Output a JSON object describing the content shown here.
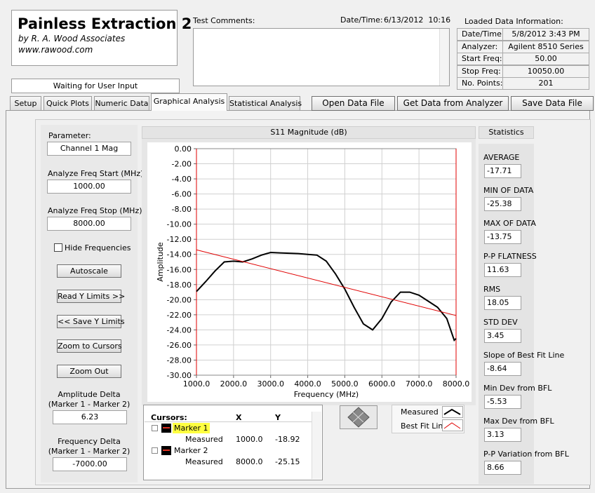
{
  "header": {
    "title": "Painless Extraction 2",
    "author": "by R. A. Wood Associates",
    "url": "www.rawood.com"
  },
  "status": "Waiting for User Input",
  "comments": {
    "label": "Test Comments:"
  },
  "datetime": {
    "label": "Date/Time:",
    "value": "6/13/2012  10:16"
  },
  "loaded_data": {
    "title": "Loaded Data Information:",
    "rows": [
      [
        "Date/Time:",
        "5/8/2012 3:43 PM"
      ],
      [
        "Analyzer:",
        "Agilent 8510 Series"
      ],
      [
        "Start Freq:",
        "50.00"
      ],
      [
        "Stop Freq:",
        "10050.00"
      ],
      [
        "No. Points:",
        "201"
      ]
    ]
  },
  "tabs": [
    "Setup",
    "Quick Plots",
    "Numeric Data",
    "Graphical Analysis",
    "Statistical Analysis"
  ],
  "toolbar": [
    "Open Data File",
    "Get Data from Analyzer",
    "Save Data File"
  ],
  "controls": {
    "parameter": {
      "label": "Parameter:",
      "value": "Channel 1 Mag"
    },
    "freq_start": {
      "label": "Analyze Freq Start (MHz)",
      "value": "1000.00"
    },
    "freq_stop": {
      "label": "Analyze Freq Stop (MHz)",
      "value": "8000.00"
    },
    "hide_frequencies": "Hide Frequencies",
    "buttons": [
      "Autoscale",
      "Read Y Limits >>",
      "<< Save Y Limits",
      "Zoom to Cursors",
      "Zoom Out"
    ],
    "amplitude_delta": {
      "label": "Amplitude Delta",
      "sublabel": "(Marker 1 - Marker 2)",
      "value": "6.23"
    },
    "frequency_delta": {
      "label": "Frequency Delta",
      "sublabel": "(Marker 1 - Marker 2)",
      "value": "-7000.00"
    }
  },
  "cursors": {
    "headers": [
      "Cursors:",
      "X",
      "Y"
    ],
    "markers": [
      {
        "name": "Marker 1",
        "trace": "Measured",
        "x": "1000.0",
        "y": "-18.92"
      },
      {
        "name": "Marker 2",
        "trace": "Measured",
        "x": "8000.0",
        "y": "-25.15"
      }
    ]
  },
  "statistics": {
    "title": "Statistics",
    "items": [
      {
        "label": "AVERAGE",
        "value": "-17.71"
      },
      {
        "label": "MIN OF DATA",
        "value": "-25.38"
      },
      {
        "label": "MAX OF DATA",
        "value": "-13.75"
      },
      {
        "label": "P-P FLATNESS",
        "value": "11.63"
      },
      {
        "label": "RMS",
        "value": "18.05"
      },
      {
        "label": "STD DEV",
        "value": "3.45"
      },
      {
        "label": "Slope of Best Fit Line",
        "value": "-8.64"
      },
      {
        "label": "Min Dev from BFL",
        "value": "-5.53"
      },
      {
        "label": "Max Dev from BFL",
        "value": "3.13"
      },
      {
        "label": "P-P Variation from BFL",
        "value": "8.66"
      }
    ]
  },
  "chart_data": {
    "type": "line",
    "title": "S11 Magnitude (dB)",
    "x_label": "Frequency (MHz)",
    "y_label": "Amplitude",
    "xlim": [
      1000,
      8000
    ],
    "xticks": [
      {
        "value": 1000,
        "label": "1000.0"
      },
      {
        "value": 2000,
        "label": "2000.0"
      },
      {
        "value": 3000,
        "label": "3000.0"
      },
      {
        "value": 4000,
        "label": "4000.0"
      },
      {
        "value": 5000,
        "label": "5000.0"
      },
      {
        "value": 6000,
        "label": "6000.0"
      },
      {
        "value": 7000,
        "label": "7000.0"
      },
      {
        "value": 8000,
        "label": "8000.0"
      }
    ],
    "ylim": [
      -30,
      0
    ],
    "yticks": [
      {
        "value": 0,
        "label": "0.00"
      },
      {
        "value": -2,
        "label": "-2.00"
      },
      {
        "value": -4,
        "label": "-4.00"
      },
      {
        "value": -6,
        "label": "-6.00"
      },
      {
        "value": -8,
        "label": "-8.00"
      },
      {
        "value": -10,
        "label": "-10.00"
      },
      {
        "value": -12,
        "label": "-12.00"
      },
      {
        "value": -14,
        "label": "-14.00"
      },
      {
        "value": -16,
        "label": "-16.00"
      },
      {
        "value": -18,
        "label": "-18.00"
      },
      {
        "value": -20,
        "label": "-20.00"
      },
      {
        "value": -22,
        "label": "-22.00"
      },
      {
        "value": -24,
        "label": "-24.00"
      },
      {
        "value": -26,
        "label": "-26.00"
      },
      {
        "value": -28,
        "label": "-28.00"
      },
      {
        "value": -30,
        "label": "-30.00"
      }
    ],
    "grid": true,
    "series": [
      {
        "name": "Measured",
        "color": "#000000",
        "x": [
          1000,
          1250,
          1500,
          1750,
          2000,
          2250,
          2500,
          2750,
          3000,
          3250,
          3500,
          3750,
          4000,
          4250,
          4500,
          4750,
          5000,
          5250,
          5500,
          5750,
          6000,
          6250,
          6500,
          6750,
          7000,
          7250,
          7500,
          7750,
          7950,
          8000
        ],
        "values": [
          -18.92,
          -17.6,
          -16.2,
          -15.0,
          -14.9,
          -15.0,
          -14.6,
          -14.1,
          -13.75,
          -13.8,
          -13.85,
          -13.9,
          -14.0,
          -14.1,
          -14.9,
          -16.6,
          -18.6,
          -21.0,
          -23.2,
          -24.0,
          -22.5,
          -20.3,
          -19.0,
          -19.0,
          -19.4,
          -20.2,
          -21.0,
          -22.5,
          -25.38,
          -25.15
        ]
      },
      {
        "name": "Best Fit Line",
        "color": "#e00000",
        "x": [
          1000,
          8000
        ],
        "values": [
          -13.4,
          -22.1
        ]
      }
    ]
  }
}
